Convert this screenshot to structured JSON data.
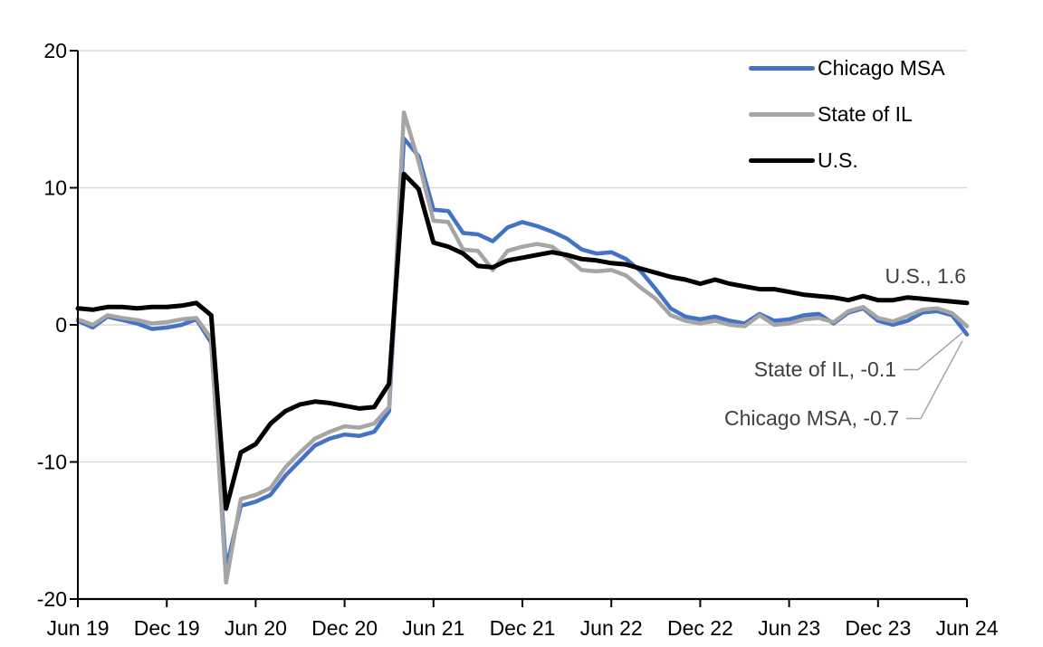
{
  "chart_data": {
    "type": "line",
    "x_categories": [
      "Jun 19",
      "Jul 19",
      "Aug 19",
      "Sep 19",
      "Oct 19",
      "Nov 19",
      "Dec 19",
      "Jan 20",
      "Feb 20",
      "Mar 20",
      "Apr 20",
      "May 20",
      "Jun 20",
      "Jul 20",
      "Aug 20",
      "Sep 20",
      "Oct 20",
      "Nov 20",
      "Dec 20",
      "Jan 21",
      "Feb 21",
      "Mar 21",
      "Apr 21",
      "May 21",
      "Jun 21",
      "Jul 21",
      "Aug 21",
      "Sep 21",
      "Oct 21",
      "Nov 21",
      "Dec 21",
      "Jan 22",
      "Feb 22",
      "Mar 22",
      "Apr 22",
      "May 22",
      "Jun 22",
      "Jul 22",
      "Aug 22",
      "Sep 22",
      "Oct 22",
      "Nov 22",
      "Dec 22",
      "Jan 23",
      "Feb 23",
      "Mar 23",
      "Apr 23",
      "May 23",
      "Jun 23",
      "Jul 23",
      "Aug 23",
      "Sep 23",
      "Oct 23",
      "Nov 23",
      "Dec 23",
      "Jan 24",
      "Feb 24",
      "Mar 24",
      "Apr 24",
      "May 24",
      "Jun 24"
    ],
    "x_tick_every": 6,
    "x_tick_labels": [
      "Jun 19",
      "Dec 19",
      "Jun 20",
      "Dec 20",
      "Jun 21",
      "Dec 21",
      "Jun 22",
      "Dec 22",
      "Jun 23",
      "Dec 23",
      "Jun 24"
    ],
    "ylim": [
      -20,
      20
    ],
    "yticks": [
      20,
      10,
      0,
      -10,
      -20
    ],
    "grid": "horizontal",
    "legend_position": "inside-top-right",
    "series": [
      {
        "name": "Chicago MSA",
        "color": "#4472C4",
        "width": 4.5,
        "values": [
          0.3,
          -0.2,
          0.6,
          0.35,
          0.1,
          -0.3,
          -0.2,
          0.0,
          0.4,
          -1.3,
          -17.8,
          -13.2,
          -12.9,
          -12.4,
          -11.0,
          -9.9,
          -8.8,
          -8.3,
          -8.0,
          -8.1,
          -7.8,
          -6.3,
          13.6,
          12.3,
          8.4,
          8.3,
          6.7,
          6.6,
          6.1,
          7.1,
          7.5,
          7.2,
          6.8,
          6.3,
          5.5,
          5.2,
          5.3,
          4.8,
          3.9,
          2.6,
          1.2,
          0.6,
          0.4,
          0.6,
          0.3,
          0.1,
          0.8,
          0.3,
          0.4,
          0.7,
          0.8,
          0.1,
          0.9,
          1.2,
          0.3,
          0.0,
          0.3,
          0.9,
          1.0,
          0.7,
          -0.7
        ]
      },
      {
        "name": "State of IL",
        "color": "#A5A5A5",
        "width": 4.5,
        "values": [
          0.4,
          0.0,
          0.7,
          0.5,
          0.35,
          0.1,
          0.2,
          0.4,
          0.5,
          -1.0,
          -18.8,
          -12.7,
          -12.4,
          -11.9,
          -10.4,
          -9.3,
          -8.3,
          -7.8,
          -7.4,
          -7.5,
          -7.2,
          -6.0,
          15.5,
          11.9,
          7.6,
          7.5,
          5.5,
          5.4,
          4.0,
          5.4,
          5.7,
          5.9,
          5.7,
          4.9,
          4.0,
          3.9,
          4.0,
          3.6,
          2.7,
          1.9,
          0.7,
          0.3,
          0.1,
          0.3,
          0.0,
          -0.1,
          0.7,
          0.0,
          0.1,
          0.4,
          0.5,
          0.2,
          1.0,
          1.3,
          0.5,
          0.25,
          0.65,
          1.1,
          1.2,
          0.85,
          -0.1
        ]
      },
      {
        "name": "U.S.",
        "color": "#000000",
        "width": 5,
        "values": [
          1.2,
          1.1,
          1.3,
          1.3,
          1.2,
          1.3,
          1.3,
          1.4,
          1.6,
          0.7,
          -13.4,
          -9.3,
          -8.7,
          -7.2,
          -6.3,
          -5.8,
          -5.6,
          -5.7,
          -5.9,
          -6.1,
          -6.0,
          -4.3,
          11.0,
          9.9,
          6.0,
          5.7,
          5.2,
          4.3,
          4.2,
          4.7,
          4.9,
          5.1,
          5.3,
          5.1,
          4.8,
          4.7,
          4.5,
          4.4,
          4.1,
          3.8,
          3.5,
          3.3,
          3.0,
          3.3,
          3.0,
          2.8,
          2.6,
          2.6,
          2.4,
          2.2,
          2.1,
          2.0,
          1.8,
          2.1,
          1.8,
          1.8,
          2.0,
          1.9,
          1.8,
          1.7,
          1.6
        ]
      }
    ],
    "annotations": [
      {
        "text": "U.S., 1.6",
        "series": "U.S.",
        "value": 1.6,
        "leader": false
      },
      {
        "text": "State of IL, -0.1",
        "series": "State of IL",
        "value": -0.1,
        "leader": true
      },
      {
        "text": "Chicago MSA, -0.7",
        "series": "Chicago MSA",
        "value": -0.7,
        "leader": true
      }
    ],
    "colors": {
      "grid": "#D9D9D9",
      "axis": "#000000",
      "tick_label": "#000000",
      "annotation_text": "#404040",
      "leader_line": "#A6A6A6"
    }
  }
}
